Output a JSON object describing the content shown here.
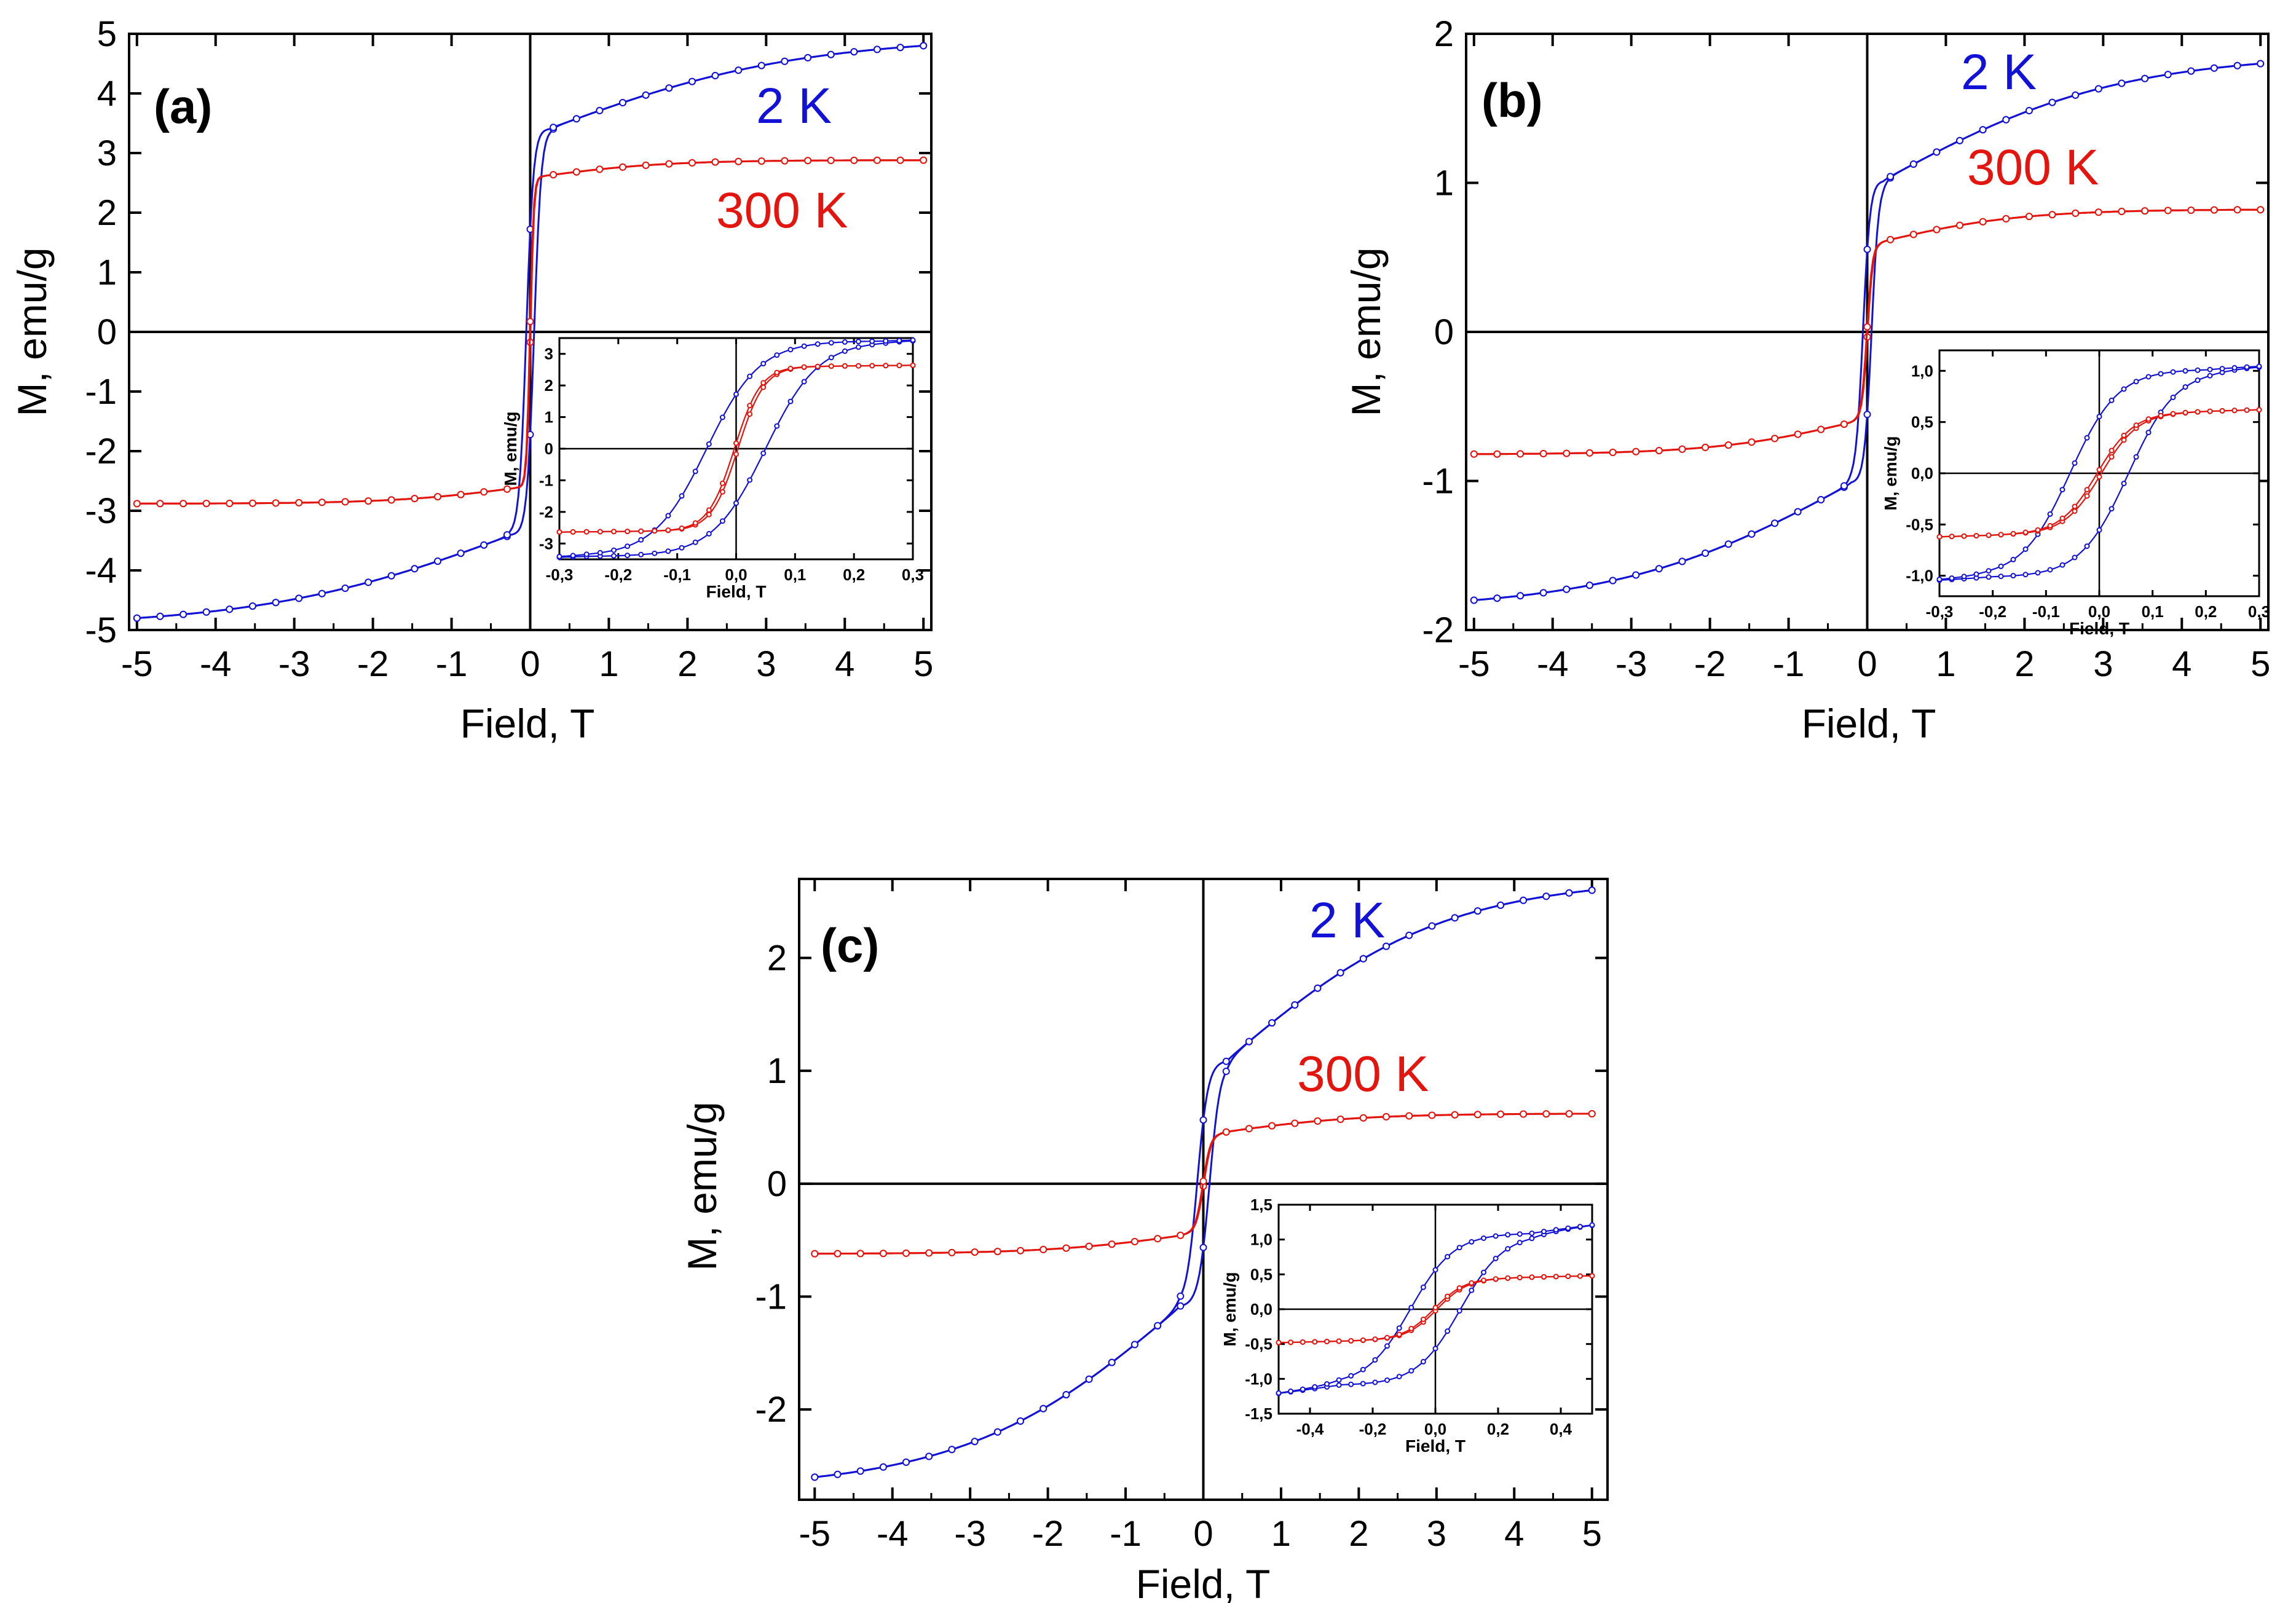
{
  "figure": {
    "colors": {
      "blue": "#1212d6",
      "red": "#e3150f",
      "axis": "#000000"
    }
  },
  "chart_data": [
    {
      "type": "line",
      "panel": "(a)",
      "xlabel": "Field, T",
      "ylabel": "M, emu/g",
      "xlim": [
        -5.1,
        5.1
      ],
      "ylim": [
        -5,
        5
      ],
      "xticks": [
        -5,
        -4,
        -3,
        -2,
        -1,
        0,
        1,
        2,
        3,
        4,
        5
      ],
      "yticks": [
        -5,
        -4,
        -3,
        -2,
        -1,
        0,
        1,
        2,
        3,
        4,
        5
      ],
      "xtick_labels": [
        "-5",
        "-4",
        "-3",
        "-2",
        "-1",
        "0",
        "1",
        "2",
        "3",
        "4",
        "5"
      ],
      "ytick_labels": [
        "-5",
        "-4",
        "-3",
        "-2",
        "-1",
        "0",
        "1",
        "2",
        "3",
        "4",
        "5"
      ],
      "series": [
        {
          "name": "2 K",
          "color": "#1212d6",
          "Ms": 4.8,
          "Hc": 0.05,
          "sat": 3.55,
          "width": 0.09,
          "slope_amp": 1.6,
          "slope_w": 3.2,
          "slope_off": 0.25
        },
        {
          "name": "300 K",
          "color": "#e3150f",
          "Ms": 2.88,
          "Hc": 0.003,
          "sat": 2.62,
          "width": 0.045,
          "slope_amp": 0.27,
          "slope_w": 1.6,
          "slope_off": 0.15
        }
      ],
      "inset": {
        "xlabel": "Field, T",
        "ylabel": "M, emu/g",
        "xlim": [
          -0.3,
          0.3
        ],
        "ylim": [
          -3.5,
          3.5
        ],
        "xticks": [
          -0.3,
          -0.2,
          -0.1,
          0.0,
          0.1,
          0.2,
          0.3
        ],
        "yticks": [
          -3,
          -2,
          -1,
          0,
          1,
          2,
          3
        ],
        "xtick_labels": [
          "-0,3",
          "-0,2",
          "-0,1",
          "0,0",
          "0,1",
          "0,2",
          "0,3"
        ],
        "ytick_labels": [
          "-3",
          "-2",
          "-1",
          "0",
          "1",
          "2",
          "3"
        ]
      }
    },
    {
      "type": "line",
      "panel": "(b)",
      "xlabel": "Field, T",
      "ylabel": "M, emu/g",
      "xlim": [
        -5.1,
        5.1
      ],
      "ylim": [
        -2,
        2
      ],
      "xticks": [
        -5,
        -4,
        -3,
        -2,
        -1,
        0,
        1,
        2,
        3,
        4,
        5
      ],
      "yticks": [
        -2,
        -1,
        0,
        1,
        2
      ],
      "xtick_labels": [
        "-5",
        "-4",
        "-3",
        "-2",
        "-1",
        "0",
        "1",
        "2",
        "3",
        "4",
        "5"
      ],
      "ytick_labels": [
        "-2",
        "-1",
        "0",
        "1",
        "2"
      ],
      "series": [
        {
          "name": "2 K",
          "color": "#1212d6",
          "Ms": 1.8,
          "Hc": 0.055,
          "sat": 0.98,
          "width": 0.09,
          "slope_amp": 0.82,
          "slope_w": 3.0,
          "slope_off": 0.2
        },
        {
          "name": "300 K",
          "color": "#e3150f",
          "Ms": 0.82,
          "Hc": 0.004,
          "sat": 0.6,
          "width": 0.07,
          "slope_amp": 0.22,
          "slope_w": 1.8,
          "slope_off": 0.15
        }
      ],
      "inset": {
        "xlabel": "Field, T",
        "ylabel": "M, emu/g",
        "xlim": [
          -0.3,
          0.3
        ],
        "ylim": [
          -1.2,
          1.2
        ],
        "xticks": [
          -0.3,
          -0.2,
          -0.1,
          0.0,
          0.1,
          0.2,
          0.3
        ],
        "yticks": [
          -1.0,
          -0.5,
          0.0,
          0.5,
          1.0
        ],
        "xtick_labels": [
          "-0,3",
          "-0,2",
          "-0,1",
          "0,0",
          "0,1",
          "0,2",
          "0,3"
        ],
        "ytick_labels": [
          "-1,0",
          "-0,5",
          "0,0",
          "0,5",
          "1,0"
        ]
      }
    },
    {
      "type": "line",
      "panel": "(c)",
      "xlabel": "Field, T",
      "ylabel": "M, emu/g",
      "xlim": [
        -5.2,
        5.2
      ],
      "ylim": [
        -2.8,
        2.7
      ],
      "xticks": [
        -5,
        -4,
        -3,
        -2,
        -1,
        0,
        1,
        2,
        3,
        4,
        5
      ],
      "yticks": [
        -2,
        -1,
        0,
        1,
        2
      ],
      "xtick_labels": [
        "-5",
        "-4",
        "-3",
        "-2",
        "-1",
        "0",
        "1",
        "2",
        "3",
        "4",
        "5"
      ],
      "ytick_labels": [
        "-2",
        "-1",
        "0",
        "1",
        "2"
      ],
      "series": [
        {
          "name": "2 K",
          "color": "#1212d6",
          "Ms": 2.6,
          "Hc": 0.08,
          "sat": 1.05,
          "width": 0.14,
          "slope_amp": 1.55,
          "slope_w": 2.8,
          "slope_off": 0.3
        },
        {
          "name": "300 K",
          "color": "#e3150f",
          "Ms": 0.62,
          "Hc": 0.005,
          "sat": 0.45,
          "width": 0.1,
          "slope_amp": 0.17,
          "slope_w": 1.8,
          "slope_off": 0.2
        }
      ],
      "inset": {
        "xlabel": "Field, T",
        "ylabel": "M, emu/g",
        "xlim": [
          -0.5,
          0.5
        ],
        "ylim": [
          -1.5,
          1.5
        ],
        "xticks": [
          -0.4,
          -0.2,
          0.0,
          0.2,
          0.4
        ],
        "yticks": [
          -1.5,
          -1.0,
          -0.5,
          0.0,
          0.5,
          1.0,
          1.5
        ],
        "xtick_labels": [
          "-0,4",
          "-0,2",
          "0,0",
          "0,2",
          "0,4"
        ],
        "ytick_labels": [
          "-1,5",
          "-1,0",
          "-0,5",
          "0,0",
          "0,5",
          "1,0",
          "1,5"
        ]
      }
    }
  ]
}
